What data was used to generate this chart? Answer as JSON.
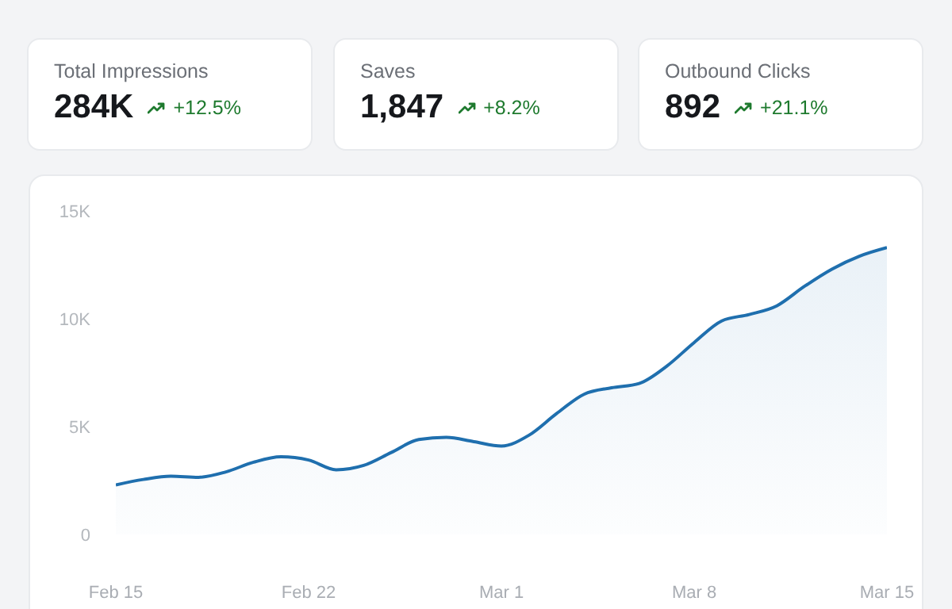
{
  "chart_data": [
    {
      "type": "other",
      "title": "Total Impressions",
      "annotations": [
        "284K",
        "+12.5%"
      ]
    },
    {
      "type": "other",
      "title": "Saves",
      "annotations": [
        "1,847",
        "+8.2%"
      ]
    },
    {
      "type": "other",
      "title": "Outbound Clicks",
      "annotations": [
        "892",
        "+21.1%"
      ]
    },
    {
      "type": "area",
      "x": [
        "--02-15",
        "--02-16",
        "--02-17",
        "--02-18",
        "--02-19",
        "--02-20",
        "--02-21",
        "--02-22",
        "--02-23",
        "--02-24",
        "--02-25",
        "--02-26",
        "--02-27",
        "--02-28",
        "--03-01",
        "--03-02",
        "--03-03",
        "--03-04",
        "--03-05",
        "--03-06",
        "--03-07",
        "--03-08",
        "--03-09",
        "--03-10",
        "--03-11",
        "--03-12",
        "--03-13",
        "--03-14",
        "--03-15"
      ],
      "series": [
        {
          "color": "#1f6fae",
          "values": [
            2300,
            2550,
            2700,
            2650,
            2900,
            3350,
            3600,
            3450,
            3000,
            3200,
            3800,
            4400,
            4500,
            4300,
            4100,
            4600,
            5600,
            6500,
            6800,
            7000,
            7800,
            8900,
            9900,
            10200,
            10600,
            11500,
            12300,
            12900,
            13300
          ]
        }
      ],
      "xlim": [
        "--02-15",
        "--03-15"
      ],
      "xticks": [
        {
          "value": "--02-15",
          "label": "Feb 15"
        },
        {
          "value": "--02-22",
          "label": "Feb 22"
        },
        {
          "value": "--03-01",
          "label": "Mar 1"
        },
        {
          "value": "--03-08",
          "label": "Mar 8"
        },
        {
          "value": "--03-15",
          "label": "Mar 15"
        }
      ],
      "ylim": [
        0,
        15000
      ],
      "yticks": [
        0,
        {
          "value": 5000,
          "label": "5K"
        },
        {
          "value": 10000,
          "label": "10K"
        },
        {
          "value": 15000,
          "label": "15K"
        }
      ]
    }
  ]
}
